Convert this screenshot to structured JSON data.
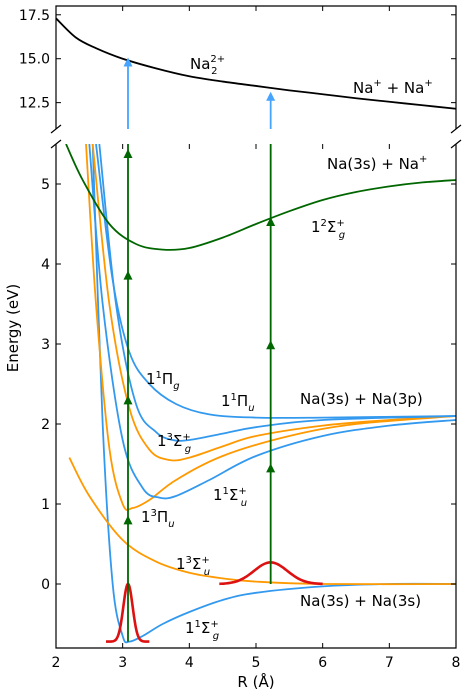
{
  "chart_data": {
    "type": "line",
    "xlabel": "R (Å)",
    "ylabel": "Energy (eV)",
    "xlim": [
      2,
      8
    ],
    "x_ticks": [
      "2",
      "3",
      "4",
      "5",
      "6",
      "7",
      "8"
    ],
    "upper_panel": {
      "ylim": [
        11.0,
        18.0
      ],
      "y_ticks": [
        "12.5",
        "15.0",
        "17.5"
      ]
    },
    "lower_panel": {
      "ylim": [
        -0.8,
        5.5
      ],
      "y_ticks": [
        "0",
        "1",
        "2",
        "3",
        "4",
        "5"
      ]
    },
    "colors": {
      "singlet": "#3399ee",
      "triplet": "#ff9900",
      "ion": "#006600",
      "dication": "#000000",
      "wavepacket": "#dd1111",
      "arrow_upper": "#44a4ff",
      "arrow_lower": "#006600"
    },
    "series": [
      {
        "label_main": "1",
        "label_sup": "1",
        "label_sym": "Σ",
        "label_sub": "g",
        "label_sub_sup": "+",
        "color": "singlet",
        "points": [
          [
            2.55,
            5.5
          ],
          [
            2.7,
            2.0
          ],
          [
            2.85,
            0.0
          ],
          [
            3.0,
            -0.65
          ],
          [
            3.1,
            -0.72
          ],
          [
            3.3,
            -0.65
          ],
          [
            3.6,
            -0.5
          ],
          [
            4.0,
            -0.35
          ],
          [
            4.5,
            -0.2
          ],
          [
            5.0,
            -0.11
          ],
          [
            6.0,
            -0.03
          ],
          [
            7.0,
            0.0
          ],
          [
            8.0,
            0.0
          ]
        ]
      },
      {
        "label_main": "1",
        "label_sup": "3",
        "label_sym": "Σ",
        "label_sub": "u",
        "label_sub_sup": "+",
        "color": "triplet",
        "points": [
          [
            2.2,
            1.58
          ],
          [
            2.5,
            1.1
          ],
          [
            3.0,
            0.55
          ],
          [
            3.5,
            0.28
          ],
          [
            4.0,
            0.14
          ],
          [
            4.5,
            0.07
          ],
          [
            5.0,
            0.03
          ],
          [
            6.0,
            0.0
          ],
          [
            8.0,
            0.0
          ]
        ]
      },
      {
        "label_main": "1",
        "label_sup": "3",
        "label_sym": "Π",
        "label_sub": "u",
        "label_sub_sup": "",
        "color": "triplet",
        "points": [
          [
            2.45,
            5.5
          ],
          [
            2.6,
            3.5
          ],
          [
            2.8,
            1.7
          ],
          [
            3.0,
            1.0
          ],
          [
            3.15,
            0.95
          ],
          [
            3.4,
            1.05
          ],
          [
            3.8,
            1.3
          ],
          [
            4.5,
            1.6
          ],
          [
            5.5,
            1.85
          ],
          [
            6.5,
            2.0
          ],
          [
            8.0,
            2.1
          ]
        ]
      },
      {
        "label_main": "1",
        "label_sup": "1",
        "label_sym": "Σ",
        "label_sub": "u",
        "label_sub_sup": "+",
        "color": "singlet",
        "points": [
          [
            2.5,
            5.5
          ],
          [
            2.7,
            3.5
          ],
          [
            3.0,
            1.8
          ],
          [
            3.3,
            1.2
          ],
          [
            3.55,
            1.08
          ],
          [
            3.8,
            1.1
          ],
          [
            4.3,
            1.3
          ],
          [
            5.0,
            1.6
          ],
          [
            6.0,
            1.85
          ],
          [
            7.0,
            1.98
          ],
          [
            8.0,
            2.05
          ]
        ]
      },
      {
        "label_main": "1",
        "label_sup": "3",
        "label_sym": "Σ",
        "label_sub": "g",
        "label_sub_sup": "+",
        "color": "triplet",
        "points": [
          [
            2.55,
            5.5
          ],
          [
            2.8,
            3.5
          ],
          [
            3.1,
            2.2
          ],
          [
            3.4,
            1.68
          ],
          [
            3.7,
            1.55
          ],
          [
            4.0,
            1.58
          ],
          [
            4.5,
            1.72
          ],
          [
            5.0,
            1.85
          ],
          [
            6.0,
            1.98
          ],
          [
            7.0,
            2.05
          ],
          [
            8.0,
            2.1
          ]
        ]
      },
      {
        "label_main": "1",
        "label_sup": "1",
        "label_sym": "Π",
        "label_sub": "g",
        "label_sub_sup": "",
        "color": "singlet",
        "points": [
          [
            2.65,
            5.5
          ],
          [
            2.9,
            3.5
          ],
          [
            3.2,
            2.25
          ],
          [
            3.5,
            1.9
          ],
          [
            3.75,
            1.8
          ],
          [
            4.0,
            1.8
          ],
          [
            4.5,
            1.88
          ],
          [
            5.0,
            1.96
          ],
          [
            6.0,
            2.05
          ],
          [
            8.0,
            2.1
          ]
        ]
      },
      {
        "label_main": "1",
        "label_sup": "1",
        "label_sym": "Π",
        "label_sub": "u",
        "label_sub_sup": "",
        "color": "singlet",
        "points": [
          [
            2.6,
            5.5
          ],
          [
            2.85,
            3.8
          ],
          [
            3.1,
            2.9
          ],
          [
            3.4,
            2.5
          ],
          [
            3.8,
            2.25
          ],
          [
            4.3,
            2.12
          ],
          [
            5.0,
            2.08
          ],
          [
            6.0,
            2.08
          ],
          [
            8.0,
            2.1
          ]
        ]
      },
      {
        "label_main": "1",
        "label_sup": "2",
        "label_sym": "Σ",
        "label_sub": "g",
        "label_sub_sup": "+",
        "color": "ion",
        "points": [
          [
            2.15,
            5.5
          ],
          [
            2.4,
            5.05
          ],
          [
            2.8,
            4.5
          ],
          [
            3.2,
            4.25
          ],
          [
            3.6,
            4.18
          ],
          [
            4.0,
            4.2
          ],
          [
            4.5,
            4.33
          ],
          [
            5.0,
            4.5
          ],
          [
            5.5,
            4.66
          ],
          [
            6.0,
            4.8
          ],
          [
            6.5,
            4.9
          ],
          [
            7.0,
            4.97
          ],
          [
            7.5,
            5.02
          ],
          [
            8.0,
            5.05
          ]
        ]
      },
      {
        "label_main": "Na",
        "label_sup": "2+",
        "label_sym": "",
        "label_sub": "2",
        "label_sub_sup": "",
        "color": "dication",
        "points": [
          [
            2.0,
            17.3
          ],
          [
            2.3,
            16.2
          ],
          [
            2.6,
            15.6
          ],
          [
            3.0,
            15.0
          ],
          [
            3.5,
            14.45
          ],
          [
            4.0,
            14.0
          ],
          [
            4.5,
            13.7
          ],
          [
            5.0,
            13.45
          ],
          [
            5.5,
            13.2
          ],
          [
            6.0,
            12.98
          ],
          [
            6.5,
            12.75
          ],
          [
            7.0,
            12.55
          ],
          [
            7.5,
            12.35
          ],
          [
            8.0,
            12.15
          ]
        ]
      }
    ],
    "wavepackets": [
      {
        "center": 3.08,
        "sigma": 0.07,
        "baseline": -0.72,
        "amplitude": 0.72,
        "x_range": [
          2.75,
          3.4
        ]
      },
      {
        "center": 5.22,
        "sigma": 0.25,
        "baseline": 0.0,
        "amplitude": 0.27,
        "x_range": [
          4.45,
          6.0
        ]
      }
    ],
    "arrows": [
      {
        "x": 3.08,
        "lower_from": -0.72,
        "lower_to": 5.5,
        "lower_heads": [
          0.82,
          2.32,
          3.88,
          5.4
        ],
        "upper_from": 11.0,
        "upper_to": 14.9
      },
      {
        "x": 5.22,
        "lower_from": 0.0,
        "lower_to": 5.5,
        "lower_heads": [
          1.47,
          3.01,
          4.55
        ],
        "upper_from": 11.0,
        "upper_to": 12.95
      }
    ],
    "annotations": {
      "na2_dication": {
        "main": "Na",
        "sub": "2",
        "sup": "2+"
      },
      "na_plus_na_plus": {
        "a": "Na",
        "a_sup": "+",
        "plus": " + ",
        "b": "Na",
        "b_sup": "+"
      },
      "na3s_na_plus": {
        "a": "Na(3s) + Na",
        "a_sup": "+"
      },
      "na3s_na3p": "Na(3s) + Na(3p)",
      "na3s_na3s": "Na(3s) + Na(3s)"
    }
  }
}
